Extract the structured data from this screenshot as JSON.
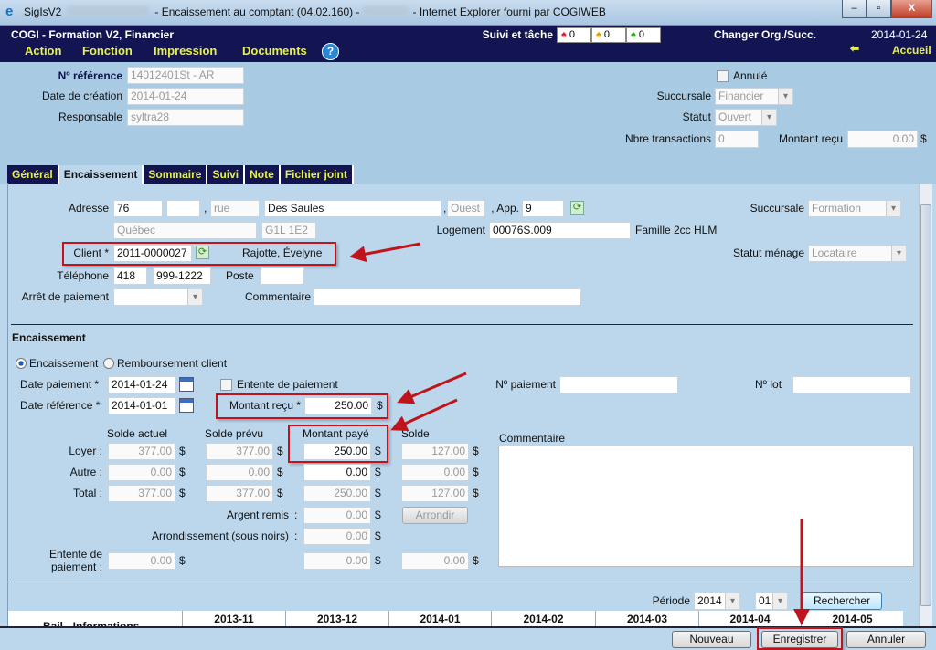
{
  "window": {
    "app": "SigIsV2",
    "title": "- Encaissement au comptant (04.02.160) -",
    "browser": "- Internet Explorer fourni par COGIWEB",
    "minimize": "–",
    "restore": "▫",
    "close": "X"
  },
  "header": {
    "org": "COGI - Formation V2, Financier",
    "suivi_label": "Suivi et tâche",
    "bells": [
      {
        "count": "0",
        "color": "#e0203a"
      },
      {
        "count": "0",
        "color": "#e8a000"
      },
      {
        "count": "0",
        "color": "#3aa82a"
      }
    ],
    "change_org": "Changer Org./Succ.",
    "date": "2014-01-24",
    "home": "Accueil",
    "help": "?",
    "menu": [
      "Action",
      "Fonction",
      "Impression",
      "Documents"
    ]
  },
  "top": {
    "ref_label": "Nº référence",
    "ref": "14012401St - AR",
    "created_label": "Date de création",
    "created": "2014-01-24",
    "resp_label": "Responsable",
    "resp": "syltra28",
    "annule": "Annulé",
    "succ_label": "Succursale",
    "succ": "Financier",
    "statut_label": "Statut",
    "statut": "Ouvert",
    "nbre_label": "Nbre transactions",
    "nbre": "0",
    "montant_label": "Montant reçu",
    "montant": "0.00",
    "currency": "$"
  },
  "tabs": [
    "Général",
    "Encaissement",
    "Sommaire",
    "Suivi",
    "Note",
    "Fichier joint"
  ],
  "client": {
    "adresse_label": "Adresse",
    "num": "76",
    "suffix": "",
    "comma": ",",
    "street_type": "rue",
    "street": "Des Saules",
    "direction": "Ouest",
    "app_label": ", App.",
    "app": "9",
    "city": "Québec",
    "postal": "G1L 1E2",
    "succ_label": "Succursale",
    "succ": "Formation",
    "logement_label": "Logement",
    "logement": "00076S.009",
    "logement_type": "Famille 2cc HLM",
    "client_label": "Client *",
    "client_id": "2011-0000027",
    "client_name": "Rajotte, Évelyne",
    "statut_label": "Statut ménage",
    "statut": "Locataire",
    "tel_label": "Téléphone",
    "tel_area": "418",
    "tel": "999-1222",
    "poste_label": "Poste",
    "poste": "",
    "arret_label": "Arrêt de paiement",
    "arret": "",
    "comment_label": "Commentaire",
    "comment": ""
  },
  "encaissement": {
    "heading": "Encaissement",
    "radio1": "Encaissement",
    "radio2": "Remboursement client",
    "date_pay_label": "Date paiement *",
    "date_pay": "2014-01-24",
    "date_ref_label": "Date référence *",
    "date_ref": "2014-01-01",
    "entente_cb": "Entente de paiement",
    "no_pay_label": "Nº paiement",
    "no_pay": "",
    "no_lot_label": "Nº lot",
    "no_lot": "",
    "montant_recu_label": "Montant reçu *",
    "montant_recu": "250.00",
    "cols": [
      "Solde actuel",
      "Solde prévu",
      "Montant payé",
      "Solde"
    ],
    "rows": [
      {
        "label": "Loyer :",
        "values": [
          "377.00",
          "377.00",
          "250.00",
          "127.00"
        ]
      },
      {
        "label": "Autre :",
        "values": [
          "0.00",
          "0.00",
          "0.00",
          "0.00"
        ]
      },
      {
        "label": "Total :",
        "values": [
          "377.00",
          "377.00",
          "250.00",
          "127.00"
        ]
      }
    ],
    "argent_label": "Argent remis",
    "argent": "0.00",
    "arrondir": "Arrondir",
    "arrond_label": "Arrondissement (sous noirs)",
    "arrond": "0.00",
    "colon": ":",
    "entente_label1": "Entente de",
    "entente_label2": "paiement :",
    "entente": [
      "0.00",
      "0.00",
      "0.00"
    ],
    "comment_label": "Commentaire",
    "currency": "$"
  },
  "period": {
    "label": "Période",
    "year": "2014",
    "month": "01",
    "search": "Rechercher"
  },
  "table": {
    "first_col": "Bail - Informations",
    "months": [
      "2013-11",
      "2013-12",
      "2014-01",
      "2014-02",
      "2014-03",
      "2014-04",
      "2014-05"
    ]
  },
  "footer": {
    "new": "Nouveau",
    "save": "Enregistrer",
    "cancel": "Annuler"
  },
  "annotation_color": "#c0141c"
}
